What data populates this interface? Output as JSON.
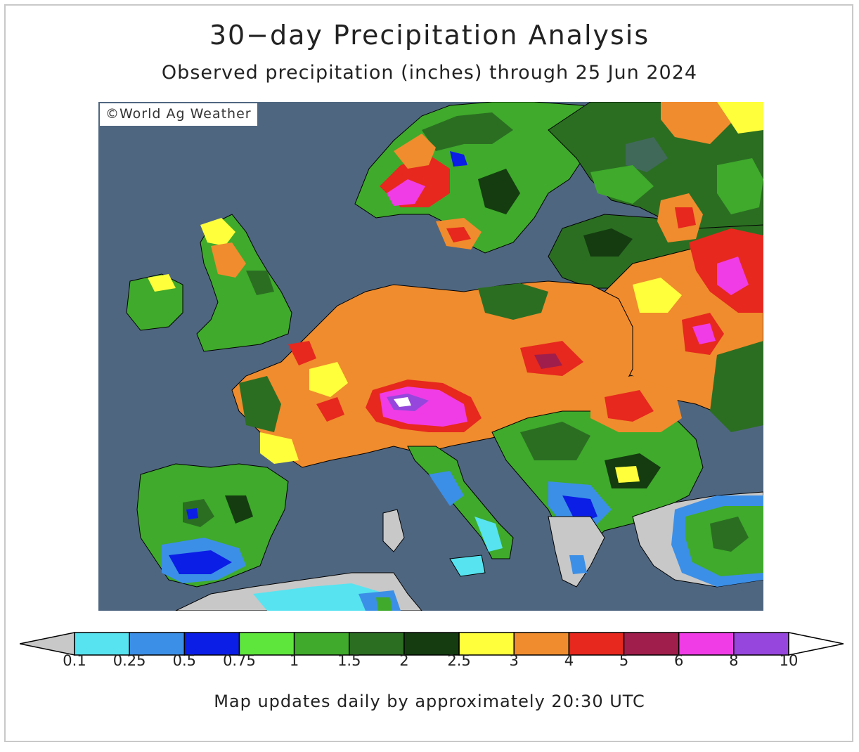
{
  "title": "30−day Precipitation Analysis",
  "subtitle": "Observed precipitation (inches) through 25 Jun 2024",
  "credit": "©World Ag Weather",
  "footnote": "Map updates daily by approximately 20:30 UTC",
  "legend": {
    "thresholds": [
      "0.1",
      "0.25",
      "0.5",
      "0.75",
      "1",
      "1.5",
      "2",
      "2.5",
      "3",
      "4",
      "5",
      "6",
      "8",
      "10"
    ],
    "colors": {
      "below": "#c8c8c8",
      "bins": [
        "#57e3f0",
        "#3c8fe6",
        "#0a1ee6",
        "#5fe63c",
        "#3faa2b",
        "#2b6e22",
        "#143c10",
        "#ffff3c",
        "#f08c2d",
        "#e6281e",
        "#a01e4b",
        "#f03ce6",
        "#9646dc"
      ],
      "above": "#ffffff"
    }
  },
  "map_colors": {
    "ocean": "#4f6680",
    "dry": "#c8c8c8",
    "lake": "#4f6680"
  }
}
